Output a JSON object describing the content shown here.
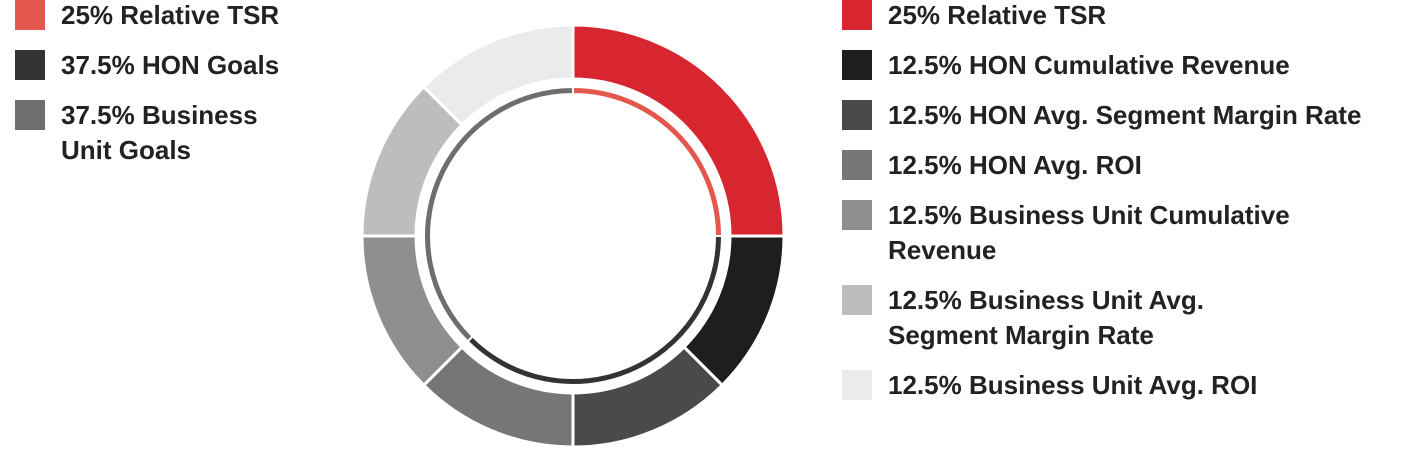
{
  "chart_data": {
    "type": "donut",
    "series": [
      {
        "categories": [
          "25% Relative TSR",
          "37.5% HON Goals",
          "37.5% Business Unit Goals"
        ],
        "colors": [
          "#e4574c",
          "#333333",
          "#6e6e6e"
        ],
        "values": [
          25,
          37.5,
          37.5
        ]
      },
      {
        "categories": [
          "25% Relative TSR",
          "12.5% HON Cumulative Revenue",
          "12.5% HON Avg. Segment Margin Rate",
          "12.5% HON Avg. ROI",
          "12.5% Business Unit Cumulative Revenue",
          "12.5% Business Unit Avg. Segment Margin Rate",
          "12.5% Business Unit Avg. ROI"
        ],
        "colors": [
          "#d7262f",
          "#1e1e1e",
          "#4a4a4a",
          "#767676",
          "#8f8f8f",
          "#bdbdbd",
          "#ebebeb"
        ],
        "values": [
          25,
          12.5,
          12.5,
          12.5,
          12.5,
          12.5,
          12.5
        ]
      }
    ]
  }
}
